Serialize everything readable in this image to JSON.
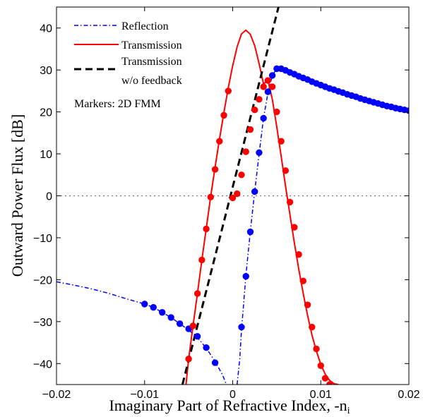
{
  "chart_data": {
    "type": "line",
    "xlabel": "Imaginary Part of Refractive Index, -n",
    "xlabel_subscript": "i",
    "ylabel": "Outward Power Flux [dB]",
    "xlim": [
      -0.02,
      0.02
    ],
    "ylim": [
      -45,
      45
    ],
    "xticks": [
      -0.02,
      -0.01,
      0,
      0.01,
      0.02
    ],
    "xtick_labels": [
      "−0.02",
      "−0.01",
      "0",
      "0.01",
      "0.02"
    ],
    "yticks": [
      -40,
      -30,
      -20,
      -10,
      0,
      10,
      20,
      30,
      40
    ],
    "ytick_labels": [
      "−40",
      "−30",
      "−20",
      "−10",
      "0",
      "10",
      "20",
      "30",
      "40"
    ],
    "zero_line": true,
    "grid": false,
    "legend": {
      "placement": "top-left",
      "entries": [
        {
          "label": "Reflection",
          "style": "dash-dot",
          "color": "#0000ff"
        },
        {
          "label": "Transmission",
          "style": "solid",
          "color": "#ff0000"
        },
        {
          "label": "Transmission",
          "label2": "w/o feedback",
          "style": "dashed",
          "color": "#000000"
        }
      ],
      "note": "Markers: 2D FMM"
    },
    "series": [
      {
        "name": "Reflection",
        "color": "#0000ff",
        "style": "dash-dot",
        "curve_left": [
          [
            -0.02,
            -20.5
          ],
          [
            -0.018,
            -21.3
          ],
          [
            -0.016,
            -22.2
          ],
          [
            -0.014,
            -23.3
          ],
          [
            -0.012,
            -24.6
          ],
          [
            -0.01,
            -25.8
          ],
          [
            -0.009,
            -26.6
          ],
          [
            -0.008,
            -27.8
          ],
          [
            -0.007,
            -29.0
          ],
          [
            -0.006,
            -30.5
          ],
          [
            -0.005,
            -32.0
          ],
          [
            -0.004,
            -33.8
          ],
          [
            -0.003,
            -36.3
          ],
          [
            -0.002,
            -39.5
          ],
          [
            -0.0012,
            -42.5
          ],
          [
            -0.0007,
            -45.0
          ]
        ],
        "curve_right": [
          [
            0.0005,
            -45.0
          ],
          [
            0.0008,
            -39.0
          ],
          [
            0.001,
            -32.0
          ],
          [
            0.0015,
            -19.0
          ],
          [
            0.002,
            -8.5
          ],
          [
            0.0025,
            1.0
          ],
          [
            0.003,
            10.0
          ],
          [
            0.0035,
            18.5
          ],
          [
            0.004,
            24.5
          ],
          [
            0.0045,
            28.7
          ],
          [
            0.005,
            30.3
          ],
          [
            0.0055,
            30.5
          ],
          [
            0.006,
            30.0
          ],
          [
            0.007,
            29.0
          ],
          [
            0.008,
            28.0
          ],
          [
            0.01,
            26.5
          ],
          [
            0.012,
            25.0
          ],
          [
            0.014,
            23.8
          ],
          [
            0.016,
            22.6
          ],
          [
            0.018,
            21.5
          ],
          [
            0.02,
            20.5
          ]
        ],
        "markers": [
          [
            -0.01,
            -25.8
          ],
          [
            -0.009,
            -26.6
          ],
          [
            -0.008,
            -27.8
          ],
          [
            -0.007,
            -29.0
          ],
          [
            -0.006,
            -30.5
          ],
          [
            -0.005,
            -31.7
          ],
          [
            -0.004,
            -33.5
          ],
          [
            -0.003,
            -36.2
          ],
          [
            -0.002,
            -39.8
          ],
          [
            0.001,
            -31.3
          ],
          [
            0.0015,
            -19.2
          ],
          [
            0.002,
            -8.6
          ],
          [
            0.0025,
            1.0
          ],
          [
            0.003,
            10.3
          ],
          [
            0.0035,
            18.5
          ],
          [
            0.004,
            24.8
          ],
          [
            0.0045,
            28.7
          ],
          [
            0.005,
            30.3
          ],
          [
            0.0055,
            30.3
          ],
          [
            0.006,
            29.9
          ],
          [
            0.0065,
            29.4
          ],
          [
            0.007,
            29.0
          ],
          [
            0.0075,
            28.5
          ],
          [
            0.008,
            28.1
          ],
          [
            0.0085,
            27.7
          ],
          [
            0.009,
            27.2
          ],
          [
            0.0095,
            26.8
          ],
          [
            0.01,
            26.4
          ],
          [
            0.0105,
            26.0
          ],
          [
            0.011,
            25.6
          ],
          [
            0.0115,
            25.3
          ],
          [
            0.012,
            24.9
          ],
          [
            0.0125,
            24.6
          ],
          [
            0.013,
            24.2
          ],
          [
            0.0135,
            23.9
          ],
          [
            0.014,
            23.6
          ],
          [
            0.0145,
            23.2
          ],
          [
            0.015,
            22.9
          ],
          [
            0.0155,
            22.6
          ],
          [
            0.016,
            22.3
          ],
          [
            0.0165,
            22.0
          ],
          [
            0.017,
            21.7
          ],
          [
            0.0175,
            21.4
          ],
          [
            0.018,
            21.2
          ],
          [
            0.0185,
            20.9
          ],
          [
            0.019,
            20.7
          ],
          [
            0.0195,
            20.5
          ],
          [
            0.02,
            20.3
          ]
        ]
      },
      {
        "name": "Transmission",
        "color": "#ff0000",
        "style": "solid",
        "curve": [
          [
            -0.0053,
            -45.0
          ],
          [
            -0.005,
            -38.9
          ],
          [
            -0.0045,
            -31.0
          ],
          [
            -0.004,
            -23.3
          ],
          [
            -0.0035,
            -15.3
          ],
          [
            -0.003,
            -7.8
          ],
          [
            -0.0025,
            -0.2
          ],
          [
            -0.002,
            6.8
          ],
          [
            -0.0015,
            13.5
          ],
          [
            -0.001,
            19.8
          ],
          [
            -0.0005,
            25.8
          ],
          [
            0.0,
            31.0
          ],
          [
            0.0005,
            35.5
          ],
          [
            0.001,
            38.6
          ],
          [
            0.0015,
            39.5
          ],
          [
            0.002,
            38.5
          ],
          [
            0.0025,
            35.8
          ],
          [
            0.003,
            31.5
          ],
          [
            0.0035,
            26.7
          ],
          [
            0.004,
            27.5
          ],
          [
            0.0045,
            23.0
          ],
          [
            0.005,
            16.5
          ],
          [
            0.0055,
            9.5
          ],
          [
            0.006,
            2.3
          ],
          [
            0.0065,
            -4.5
          ],
          [
            0.007,
            -11.2
          ],
          [
            0.0075,
            -17.5
          ],
          [
            0.008,
            -23.2
          ],
          [
            0.0085,
            -28.5
          ],
          [
            0.009,
            -33.2
          ],
          [
            0.0095,
            -37.0
          ],
          [
            0.01,
            -40.2
          ],
          [
            0.0105,
            -42.5
          ],
          [
            0.011,
            -44.0
          ],
          [
            0.0115,
            -44.8
          ],
          [
            0.012,
            -45.0
          ]
        ],
        "markers": [
          [
            -0.005,
            -38.9
          ],
          [
            -0.0045,
            -31.0
          ],
          [
            -0.004,
            -23.3
          ],
          [
            -0.0035,
            -15.3
          ],
          [
            -0.003,
            -7.9
          ],
          [
            -0.0025,
            -0.3
          ],
          [
            -0.002,
            6.3
          ],
          [
            -0.0015,
            13.0
          ],
          [
            -0.001,
            19.2
          ],
          [
            -0.0005,
            25.0
          ],
          [
            0.0,
            -0.5
          ],
          [
            0.0005,
            0.5
          ],
          [
            0.001,
            5.0
          ],
          [
            0.0015,
            10.5
          ],
          [
            0.002,
            15.8
          ],
          [
            0.0025,
            20.5
          ],
          [
            0.003,
            23.0
          ],
          [
            0.0035,
            26.0
          ],
          [
            0.004,
            27.5
          ],
          [
            0.0045,
            26.0
          ],
          [
            0.005,
            20.0
          ],
          [
            0.0055,
            13.0
          ],
          [
            0.006,
            6.0
          ],
          [
            0.0065,
            -1.5
          ],
          [
            0.007,
            -7.5
          ],
          [
            0.0075,
            -14.0
          ],
          [
            0.008,
            -20.3
          ],
          [
            0.0085,
            -26.0
          ],
          [
            0.009,
            -31.3
          ],
          [
            0.0095,
            -36.5
          ],
          [
            0.01,
            -40.5
          ],
          [
            0.0105,
            -43.5
          ],
          [
            0.011,
            -45.0
          ]
        ]
      },
      {
        "name": "Transmission w/o feedback",
        "color": "#000000",
        "style": "dashed",
        "curve": [
          [
            -0.0057,
            -45.0
          ],
          [
            0.0052,
            45.0
          ]
        ]
      }
    ]
  }
}
